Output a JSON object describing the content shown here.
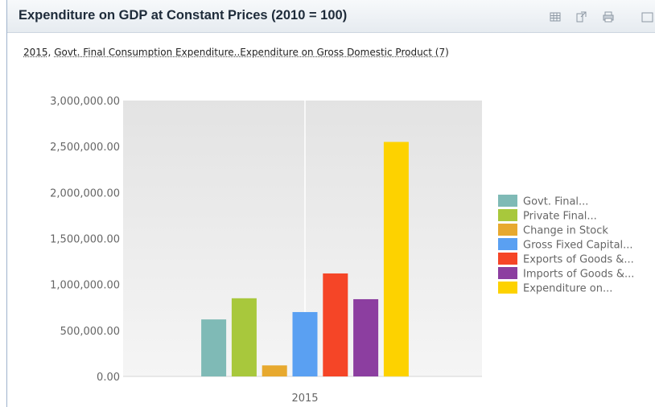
{
  "header": {
    "title": "Expenditure on GDP at Constant Prices (2010 = 100)",
    "icons": [
      "table-icon",
      "export-icon",
      "print-icon",
      "maximize-icon"
    ]
  },
  "subtitle": {
    "year": "2015",
    "separator": ", ",
    "text": "Govt. Final Consumption Expenditure..Expenditure on Gross Domestic Product (7)"
  },
  "chart_data": {
    "type": "bar",
    "categories": [
      "2015"
    ],
    "ylim": [
      0,
      3000000
    ],
    "yticks": [
      "0.00",
      "500,000.00",
      "1,000,000.00",
      "1,500,000.00",
      "2,000,000.00",
      "2,500,000.00",
      "3,000,000.00"
    ],
    "grid": true,
    "legend_position": "right",
    "series": [
      {
        "name": "Govt. Final...",
        "color": "#7fbab6",
        "values": [
          620000
        ]
      },
      {
        "name": "Private Final...",
        "color": "#a8c83c",
        "values": [
          850000
        ]
      },
      {
        "name": "Change in Stock",
        "color": "#e7a92f",
        "values": [
          120000
        ]
      },
      {
        "name": "Gross Fixed Capital...",
        "color": "#5aa0f2",
        "values": [
          700000
        ]
      },
      {
        "name": "Exports of Goods &...",
        "color": "#f54527",
        "values": [
          1120000
        ]
      },
      {
        "name": "Imports of Goods &...",
        "color": "#8c3ea0",
        "values": [
          840000
        ]
      },
      {
        "name": "Expenditure on...",
        "color": "#fdd200",
        "values": [
          2550000
        ]
      }
    ]
  }
}
